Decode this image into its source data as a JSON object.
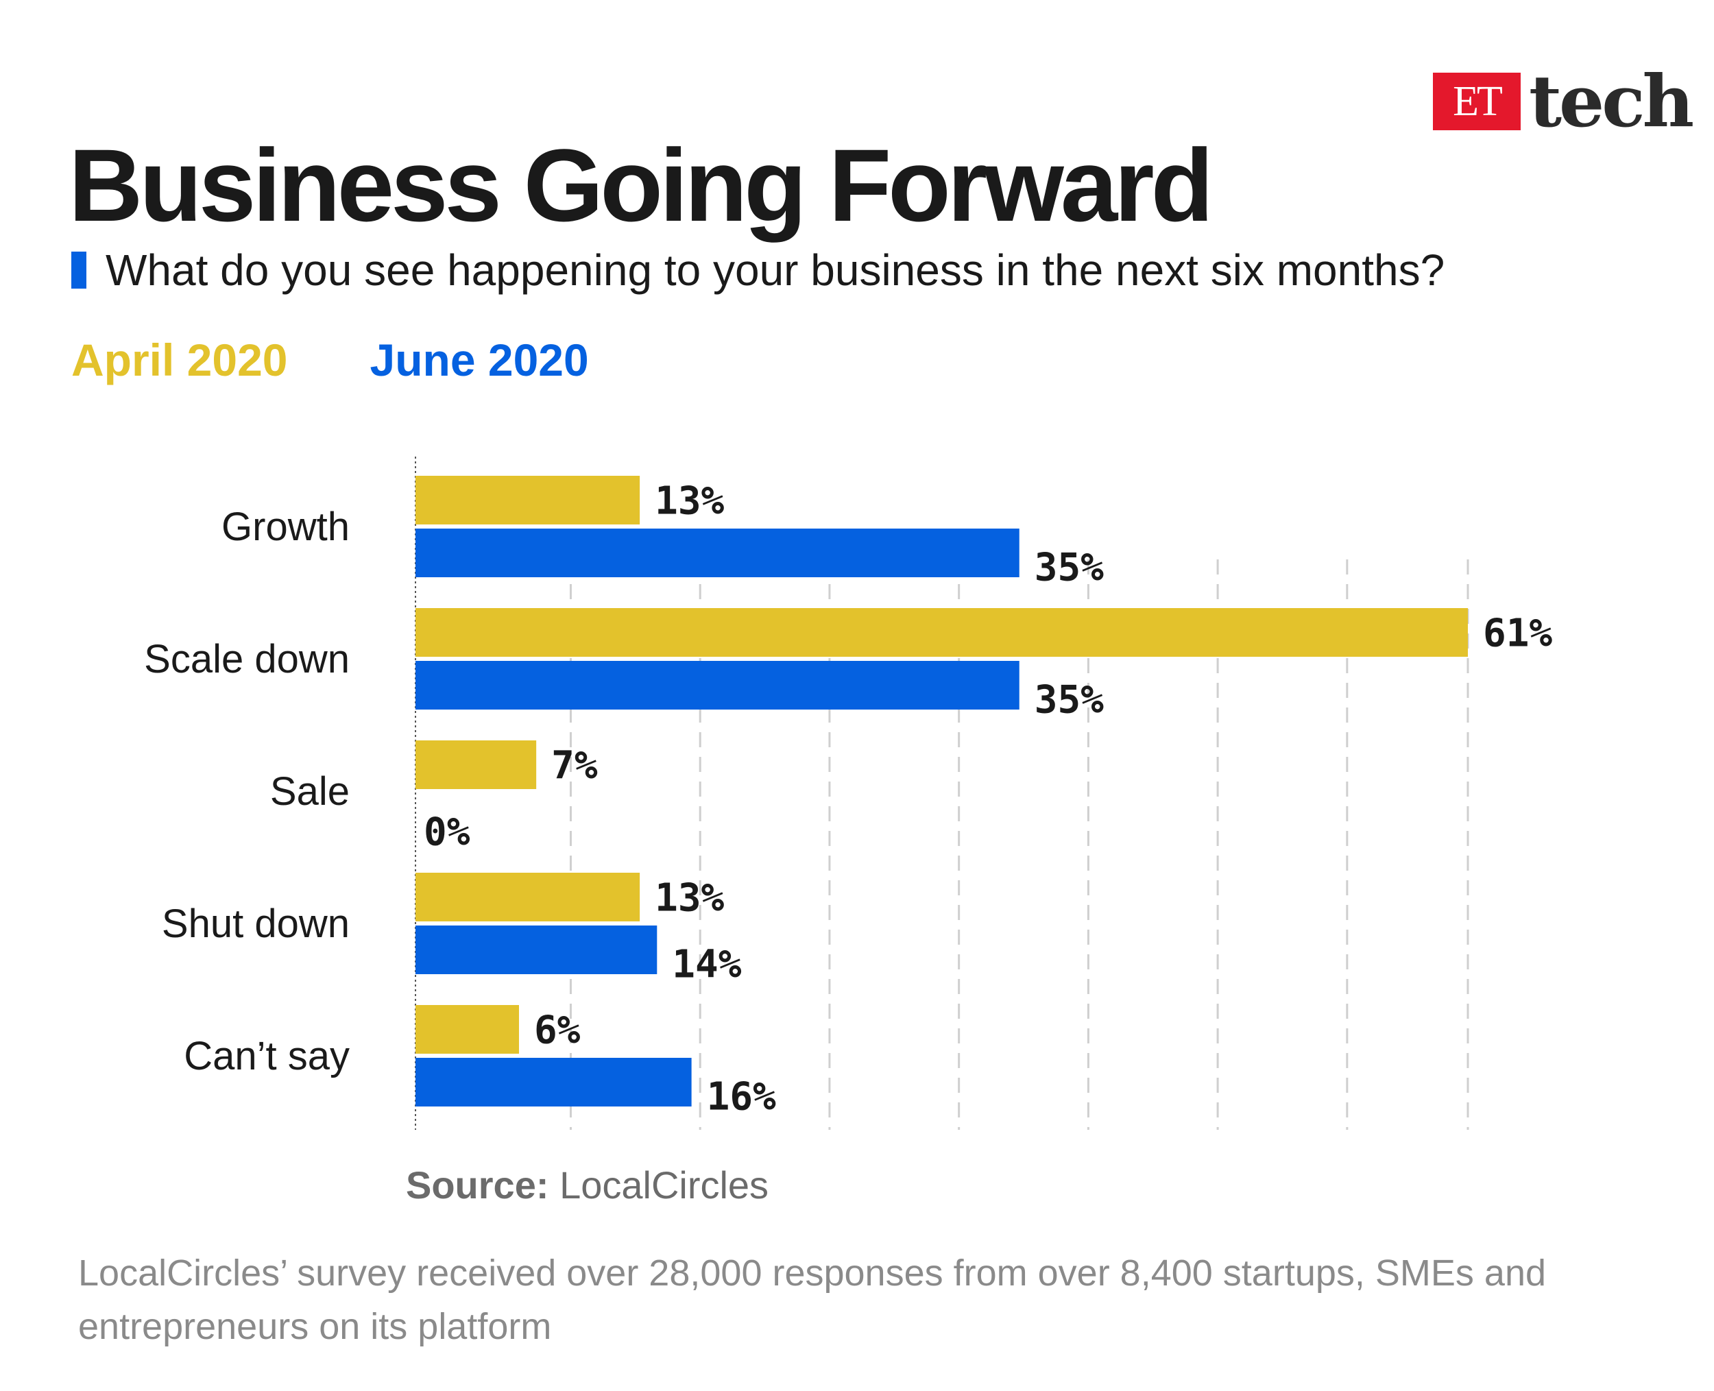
{
  "logo": {
    "et": "ET",
    "tech": "tech"
  },
  "title": "Business Going Forward",
  "subtitle": "What do you see happening to your business in the next six months?",
  "colors": {
    "april": "#e3c22c",
    "june": "#0561e0",
    "grid": "#cfcfcf",
    "axis": "#555555"
  },
  "legend": [
    {
      "label": "April 2020",
      "color": "#e3c22c"
    },
    {
      "label": "June 2020",
      "color": "#0561e0"
    }
  ],
  "chart_data": {
    "type": "bar",
    "orientation": "horizontal",
    "categories": [
      "Growth",
      "Scale down",
      "Sale",
      "Shut down",
      "Can’t say"
    ],
    "series": [
      {
        "name": "April 2020",
        "color": "#e3c22c",
        "values": [
          13,
          61,
          7,
          13,
          6
        ],
        "labels": [
          "13%",
          "61%",
          "7%",
          "13%",
          "6%"
        ]
      },
      {
        "name": "June 2020",
        "color": "#0561e0",
        "values": [
          35,
          35,
          0,
          14,
          16
        ],
        "labels": [
          "35%",
          "35%",
          "0%",
          "14%",
          "16%"
        ]
      }
    ],
    "xlim": [
      0,
      61
    ],
    "gridlines": [
      9,
      16.5,
      24,
      31.5,
      39,
      46.5,
      54,
      61
    ],
    "grid": true,
    "legend_position": "top-left"
  },
  "source": {
    "label": "Source:",
    "text": "LocalCircles"
  },
  "footnote": "LocalCircles’ survey received over 28,000 responses from over 8,400 startups, SMEs and entrepreneurs on its platform"
}
